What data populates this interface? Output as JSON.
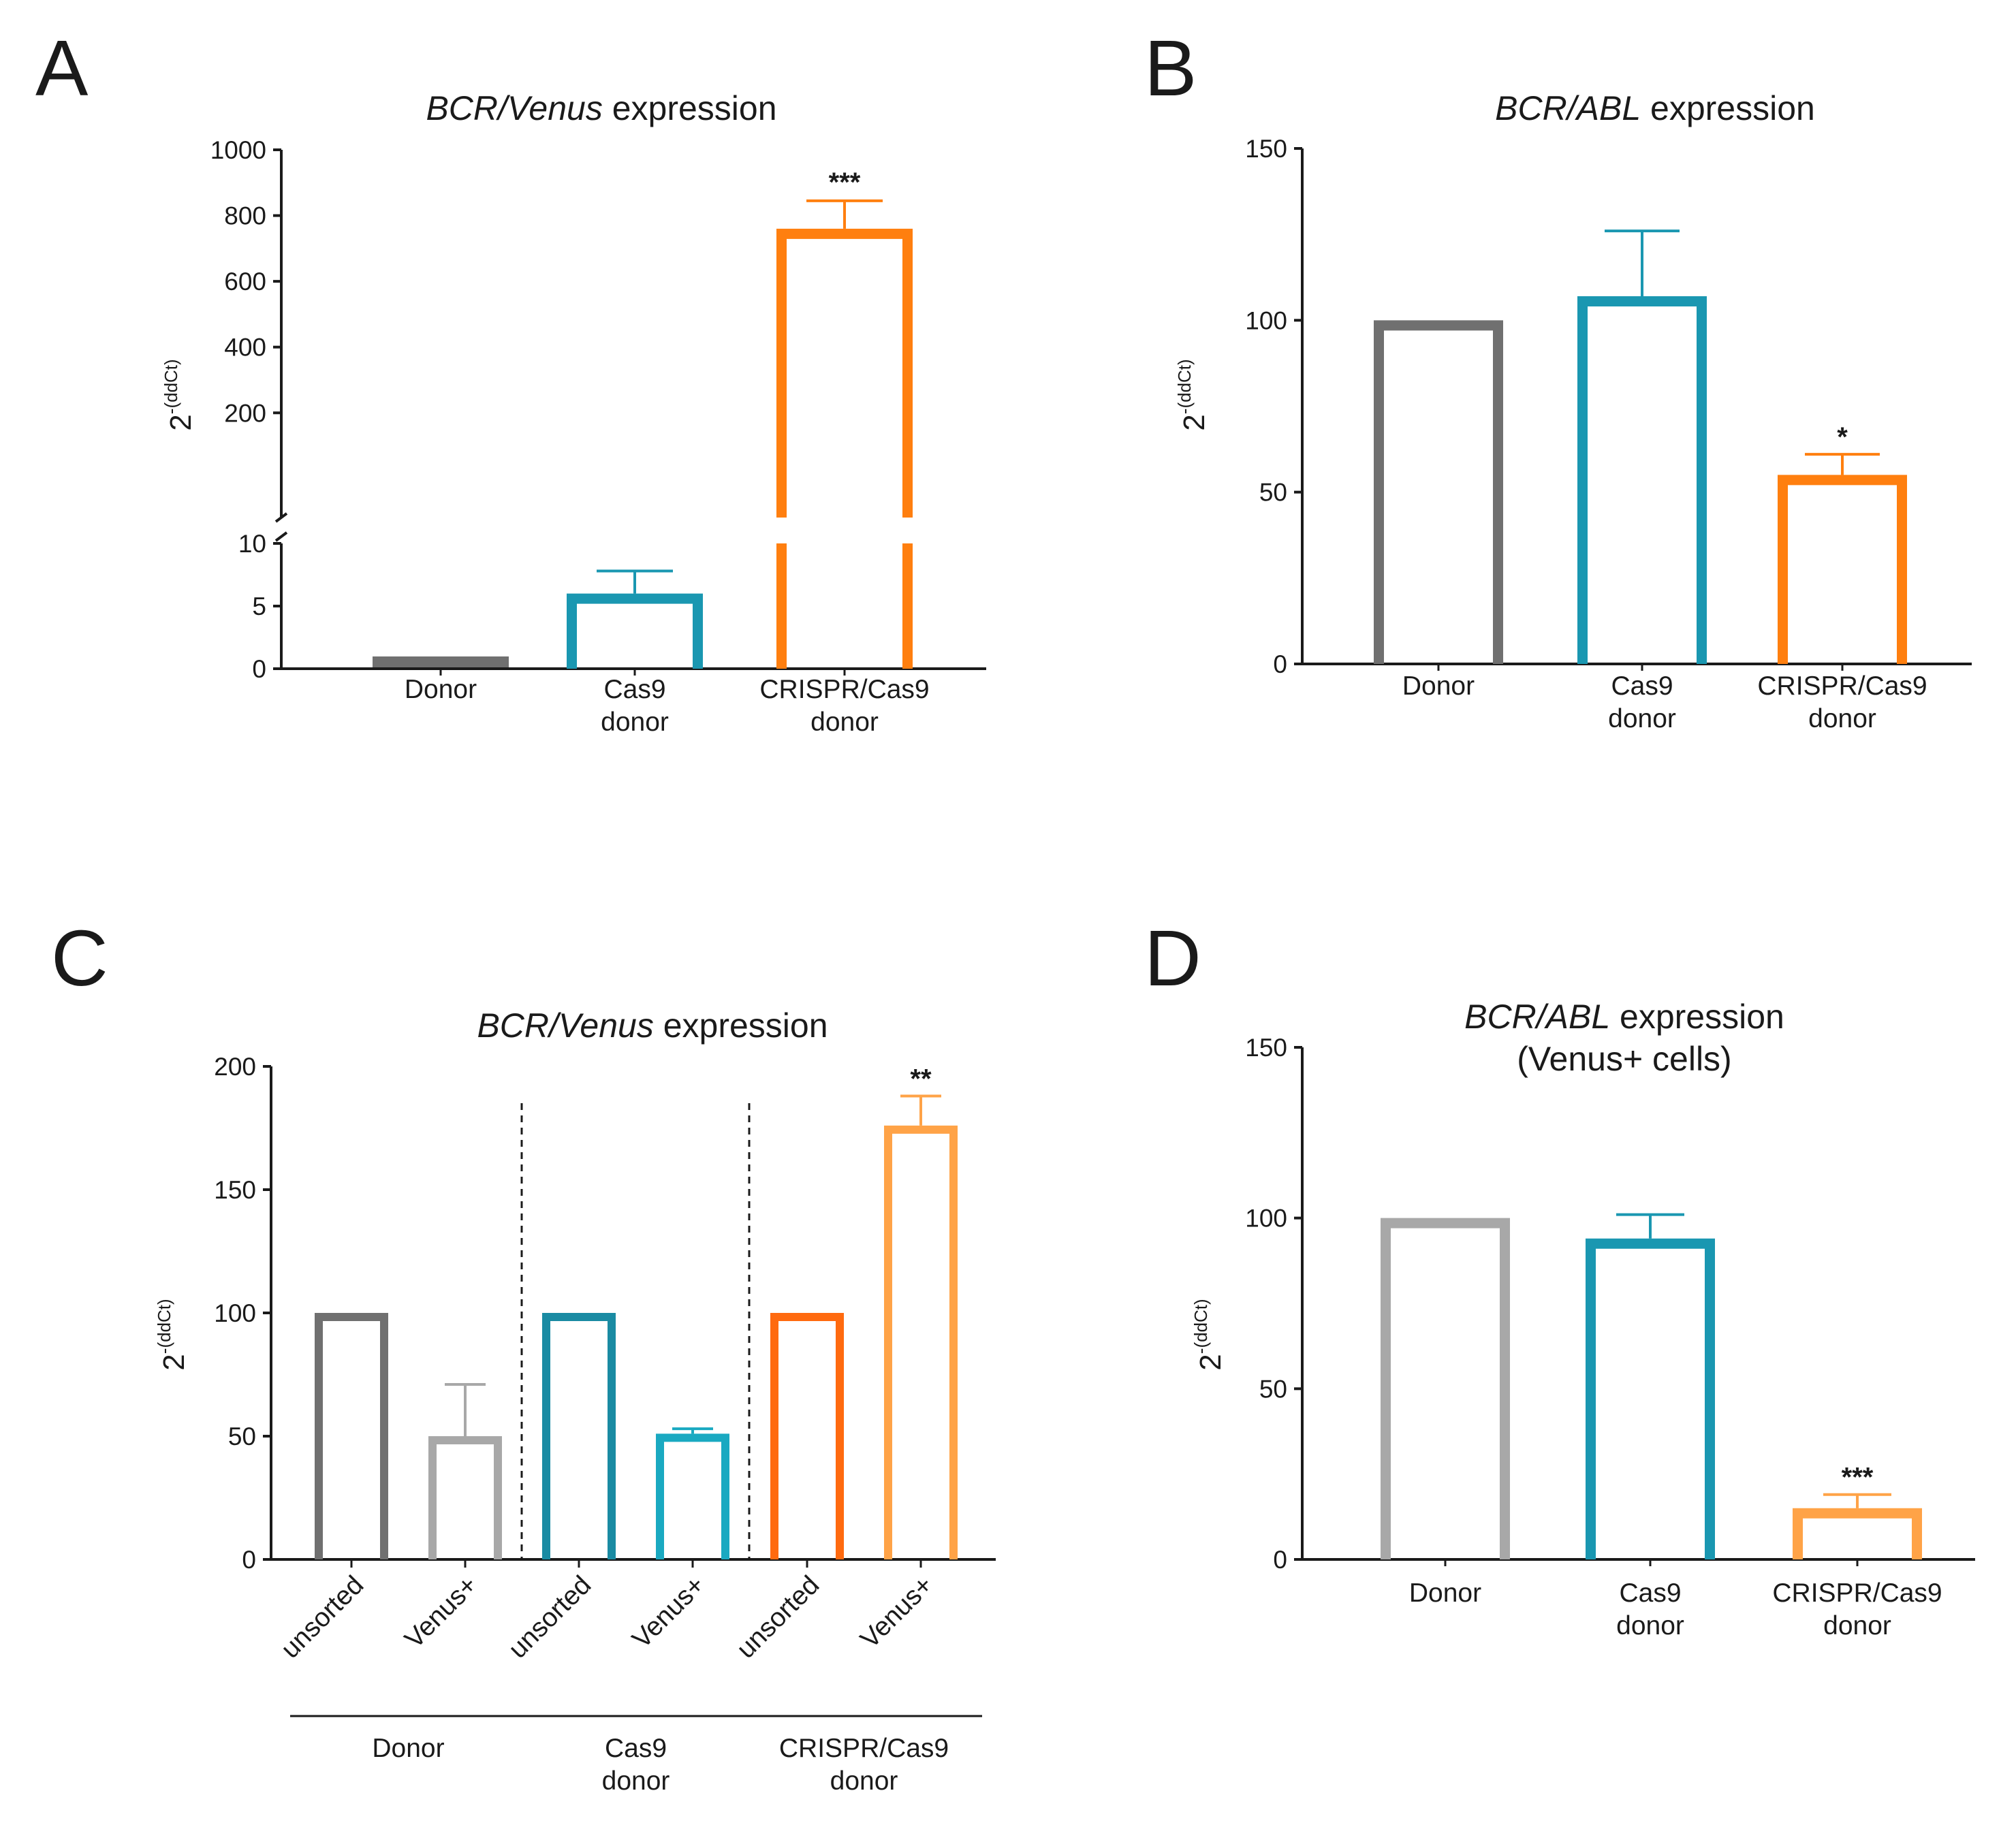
{
  "colors": {
    "donor": "#707070",
    "donor_light": "#a8a8a8",
    "cas9": "#1a97b1",
    "crispr": "#ff7f0f",
    "crispr_light": "#ffa347",
    "axis": "#1a1a1a"
  },
  "panels": [
    {
      "letter": "A",
      "title_italic": "BCR/Venus",
      "title_rest": " expression",
      "title_line2": "",
      "ylabel_base": "2",
      "ylabel_sup": "-(ddCt)"
    },
    {
      "letter": "B",
      "title_italic": "BCR/ABL",
      "title_rest": " expression",
      "title_line2": "",
      "ylabel_base": "2",
      "ylabel_sup": "-(ddCt)"
    },
    {
      "letter": "C",
      "title_italic": "BCR/Venus",
      "title_rest": " expression",
      "title_line2": "",
      "ylabel_base": "2",
      "ylabel_sup": "-(ddCt)"
    },
    {
      "letter": "D",
      "title_italic": "BCR/ABL",
      "title_rest": " expression",
      "title_line2": "(Venus+ cells)",
      "ylabel_base": "2",
      "ylabel_sup": "-(ddCt)"
    }
  ],
  "chart_data": [
    {
      "panel": "A",
      "type": "bar",
      "title": "BCR/Venus expression",
      "ylabel": "2-(ddCt)",
      "broken_axis": true,
      "y_lower_segment": [
        0,
        10
      ],
      "y_upper_segment": [
        10,
        1000
      ],
      "yticks_lower": [
        0,
        5,
        10
      ],
      "yticks_upper": [
        200,
        400,
        600,
        800,
        1000
      ],
      "categories": [
        "Donor",
        "Cas9 donor",
        "CRISPR/Cas9 donor"
      ],
      "category_lines": [
        [
          "Donor"
        ],
        [
          "Cas9",
          "donor"
        ],
        [
          "CRISPR/Cas9",
          "donor"
        ]
      ],
      "values": [
        1,
        6,
        760
      ],
      "errors": [
        0,
        1.8,
        85
      ],
      "significance": [
        "",
        "",
        "***"
      ],
      "colors": [
        "#707070",
        "#1a97b1",
        "#ff7f0f"
      ],
      "grid": false,
      "legend": "none"
    },
    {
      "panel": "B",
      "type": "bar",
      "title": "BCR/ABL expression",
      "ylabel": "2-(ddCt)",
      "ylim": [
        0,
        150
      ],
      "yticks": [
        0,
        50,
        100,
        150
      ],
      "categories": [
        "Donor",
        "Cas9 donor",
        "CRISPR/Cas9 donor"
      ],
      "category_lines": [
        [
          "Donor"
        ],
        [
          "Cas9",
          "donor"
        ],
        [
          "CRISPR/Cas9",
          "donor"
        ]
      ],
      "values": [
        100,
        107,
        55
      ],
      "errors": [
        0,
        19,
        6
      ],
      "significance": [
        "",
        "",
        "*"
      ],
      "colors": [
        "#707070",
        "#1a97b1",
        "#ff7f0f"
      ],
      "grid": false,
      "legend": "none"
    },
    {
      "panel": "C",
      "type": "bar",
      "title": "BCR/Venus expression",
      "ylabel": "2-(ddCt)",
      "ylim": [
        0,
        200
      ],
      "yticks": [
        0,
        50,
        100,
        150,
        200
      ],
      "categories": [
        "unsorted",
        "Venus+",
        "unsorted",
        "Venus+",
        "unsorted",
        "Venus+"
      ],
      "groups": [
        {
          "lines": [
            "Donor"
          ],
          "members": [
            0,
            1
          ]
        },
        {
          "lines": [
            "Cas9",
            "donor"
          ],
          "members": [
            2,
            3
          ]
        },
        {
          "lines": [
            "CRISPR/Cas9",
            "donor"
          ],
          "members": [
            4,
            5
          ]
        }
      ],
      "values": [
        100,
        50,
        100,
        51,
        100,
        176
      ],
      "errors": [
        0,
        21,
        0,
        2,
        0,
        12
      ],
      "significance": [
        "",
        "",
        "",
        "",
        "",
        "**"
      ],
      "colors": [
        "#707070",
        "#a8a8a8",
        "#1a8ba3",
        "#1aa9c1",
        "#ff6a0f",
        "#ffa347"
      ],
      "grid": false,
      "legend": "none"
    },
    {
      "panel": "D",
      "type": "bar",
      "title": "BCR/ABL expression (Venus+ cells)",
      "ylabel": "2-(ddCt)",
      "ylim": [
        0,
        150
      ],
      "yticks": [
        0,
        50,
        100,
        150
      ],
      "categories": [
        "Donor",
        "Cas9 donor",
        "CRISPR/Cas9 donor"
      ],
      "category_lines": [
        [
          "Donor"
        ],
        [
          "Cas9",
          "donor"
        ],
        [
          "CRISPR/Cas9",
          "donor"
        ]
      ],
      "values": [
        100,
        94,
        15
      ],
      "errors": [
        0,
        7,
        4
      ],
      "significance": [
        "",
        "",
        "***"
      ],
      "colors": [
        "#a8a8a8",
        "#1a97b1",
        "#ffa347"
      ],
      "grid": false,
      "legend": "none"
    }
  ]
}
